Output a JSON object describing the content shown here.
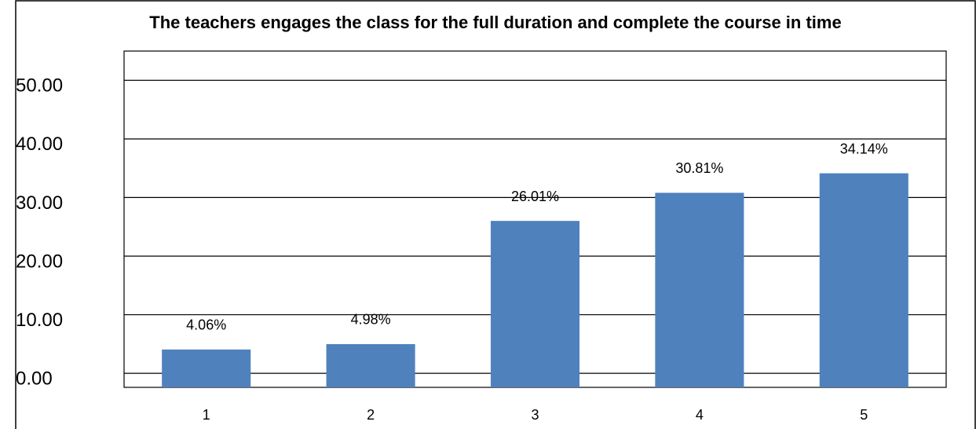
{
  "chart_data": {
    "type": "bar",
    "title": "The teachers engages the class for the full duration and complete the course in time",
    "categories": [
      "1",
      "2",
      "3",
      "4",
      "5"
    ],
    "values": [
      4.06,
      4.98,
      26.01,
      30.81,
      34.14
    ],
    "value_labels": [
      "4.06%",
      "4.98%",
      "26.01%",
      "30.81%",
      "34.14%"
    ],
    "color": "#4f81bd",
    "ylim": [
      -2.4,
      55
    ],
    "yticks": [
      {
        "value": 0,
        "label": "0.00"
      },
      {
        "value": 10,
        "label": "10.00"
      },
      {
        "value": 20,
        "label": "20.00"
      },
      {
        "value": 30,
        "label": "30.00"
      },
      {
        "value": 40,
        "label": "40.00"
      },
      {
        "value": 50,
        "label": "50.00"
      }
    ],
    "grid": true
  }
}
